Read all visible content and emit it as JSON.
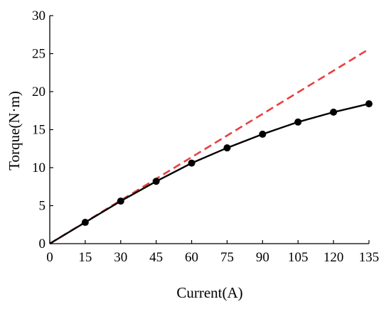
{
  "chart_data": {
    "type": "line",
    "xlabel": "Current(A)",
    "ylabel": "Torque(N·m)",
    "xlim": [
      0,
      135
    ],
    "ylim": [
      0,
      30
    ],
    "xticks": [
      0,
      15,
      30,
      45,
      60,
      75,
      90,
      105,
      120,
      135
    ],
    "yticks": [
      0,
      5,
      10,
      15,
      20,
      25,
      30
    ],
    "xtick_labels": [
      "0",
      "15",
      "30",
      "45",
      "60",
      "75",
      "90",
      "105",
      "120",
      "135"
    ],
    "ytick_labels": [
      "0",
      "5",
      "10",
      "15",
      "20",
      "25",
      "30"
    ],
    "grid": false,
    "series": [
      {
        "style": "solid",
        "color": "#000000",
        "markers": true,
        "x": [
          0,
          15,
          30,
          45,
          60,
          75,
          90,
          105,
          120,
          135
        ],
        "y": [
          0,
          2.8,
          5.6,
          8.2,
          10.6,
          12.6,
          14.4,
          16.0,
          17.3,
          18.4
        ]
      },
      {
        "style": "dashed",
        "color": "#e84040",
        "markers": false,
        "x": [
          0,
          135
        ],
        "y": [
          0,
          25.6
        ]
      }
    ]
  }
}
